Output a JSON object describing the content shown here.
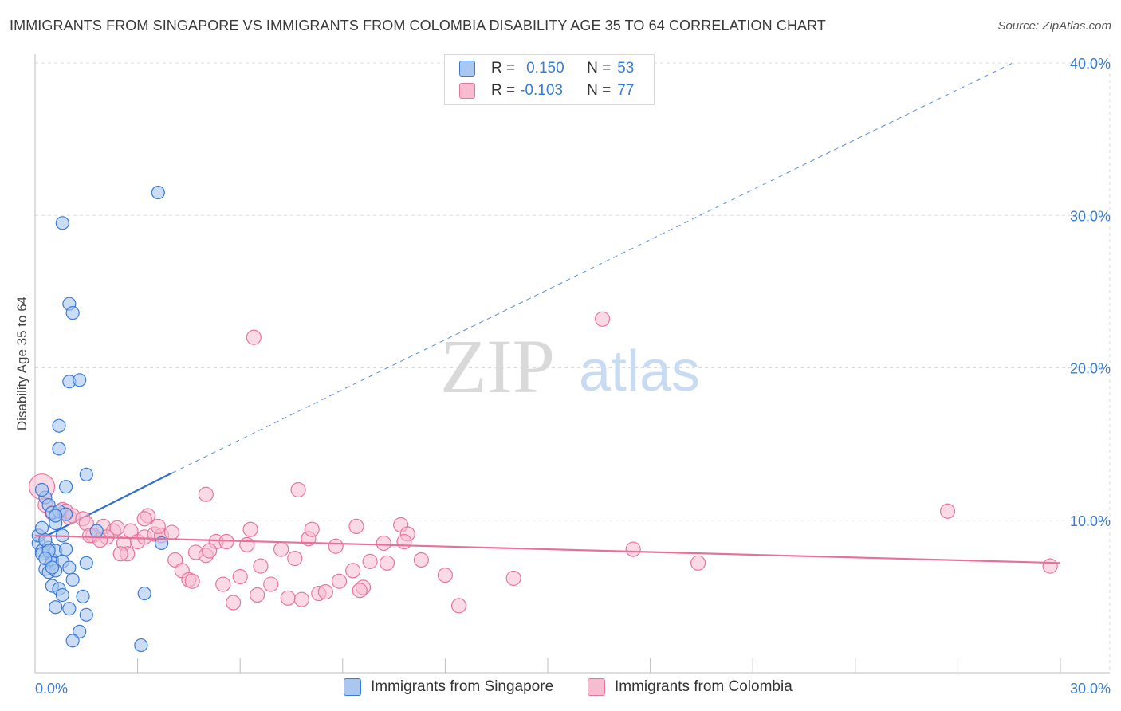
{
  "title": "IMMIGRANTS FROM SINGAPORE VS IMMIGRANTS FROM COLOMBIA DISABILITY AGE 35 TO 64 CORRELATION CHART",
  "source": "Source: ZipAtlas.com",
  "watermark": {
    "zip": "ZIP",
    "atlas": "atlas"
  },
  "legend": {
    "r_label": "R =",
    "n_label": "N =",
    "series": [
      {
        "r": "0.150",
        "n": "53"
      },
      {
        "r": "-0.103",
        "n": "77"
      }
    ]
  },
  "colors": {
    "singapore_fill": "#a9c7f0",
    "singapore_stroke": "#3a7bd5",
    "singapore_line": "#2f6fd0",
    "colombia_fill": "#f7bcd0",
    "colombia_stroke": "#e8769c",
    "colombia_line": "#e8709a",
    "tick_label": "#3a7bd5",
    "grid": "#dddddd"
  },
  "chart_data": {
    "type": "scatter",
    "title": "IMMIGRANTS FROM SINGAPORE VS IMMIGRANTS FROM COLOMBIA DISABILITY AGE 35 TO 64 CORRELATION CHART",
    "xlabel": "",
    "ylabel": "Disability Age 35 to 64",
    "xlim": [
      0,
      30
    ],
    "ylim": [
      0,
      40
    ],
    "x_tick_labels": [
      "0.0%",
      "30.0%"
    ],
    "y_ticks": [
      10,
      20,
      30,
      40
    ],
    "y_tick_labels": [
      "10.0%",
      "20.0%",
      "30.0%",
      "40.0%"
    ],
    "grid": true,
    "series": [
      {
        "name": "Immigrants from Singapore",
        "r": 0.15,
        "n": 53,
        "trend": {
          "x": [
            0,
            4.0
          ],
          "y": [
            8.6,
            13.1
          ],
          "dashed_to": [
            28.6,
            40.0
          ]
        },
        "points": [
          [
            0.1,
            8.5
          ],
          [
            0.2,
            8.0
          ],
          [
            0.3,
            11.5
          ],
          [
            0.1,
            9.0
          ],
          [
            0.2,
            7.8
          ],
          [
            0.4,
            8.2
          ],
          [
            0.3,
            6.8
          ],
          [
            0.5,
            7.4
          ],
          [
            0.6,
            9.8
          ],
          [
            0.4,
            11.0
          ],
          [
            0.5,
            10.5
          ],
          [
            0.7,
            10.6
          ],
          [
            0.6,
            8.0
          ],
          [
            0.8,
            9.0
          ],
          [
            0.9,
            8.1
          ],
          [
            0.5,
            7.2
          ],
          [
            0.8,
            7.3
          ],
          [
            0.4,
            6.6
          ],
          [
            0.6,
            6.7
          ],
          [
            1.0,
            6.9
          ],
          [
            0.5,
            5.7
          ],
          [
            0.7,
            5.5
          ],
          [
            1.1,
            6.1
          ],
          [
            0.8,
            5.1
          ],
          [
            1.4,
            5.0
          ],
          [
            0.6,
            4.3
          ],
          [
            1.0,
            4.2
          ],
          [
            1.5,
            3.8
          ],
          [
            1.3,
            2.7
          ],
          [
            1.1,
            2.1
          ],
          [
            0.7,
            14.7
          ],
          [
            0.7,
            16.2
          ],
          [
            1.0,
            19.1
          ],
          [
            1.3,
            19.2
          ],
          [
            1.0,
            24.2
          ],
          [
            1.1,
            23.6
          ],
          [
            0.8,
            29.5
          ],
          [
            0.9,
            12.2
          ],
          [
            1.5,
            13.0
          ],
          [
            1.8,
            9.3
          ],
          [
            1.5,
            7.2
          ],
          [
            3.6,
            31.5
          ],
          [
            3.2,
            5.2
          ],
          [
            3.1,
            1.8
          ],
          [
            3.7,
            8.5
          ],
          [
            0.2,
            9.5
          ],
          [
            0.3,
            8.7
          ],
          [
            0.9,
            10.4
          ],
          [
            0.2,
            12.0
          ],
          [
            0.4,
            8.0
          ],
          [
            0.6,
            10.3
          ],
          [
            0.3,
            7.5
          ],
          [
            0.5,
            6.9
          ]
        ]
      },
      {
        "name": "Immigrants from Colombia",
        "r": -0.103,
        "n": 77,
        "trend": {
          "x": [
            0,
            30
          ],
          "y": [
            9.0,
            7.2
          ]
        },
        "points": [
          [
            0.2,
            12.2
          ],
          [
            0.3,
            11.0
          ],
          [
            0.5,
            10.5
          ],
          [
            0.8,
            10.7
          ],
          [
            1.0,
            10.2
          ],
          [
            0.9,
            10.6
          ],
          [
            1.1,
            10.3
          ],
          [
            1.4,
            10.1
          ],
          [
            1.5,
            9.8
          ],
          [
            1.7,
            9.0
          ],
          [
            2.0,
            9.6
          ],
          [
            2.3,
            9.3
          ],
          [
            2.1,
            8.9
          ],
          [
            1.9,
            8.7
          ],
          [
            2.6,
            8.5
          ],
          [
            2.8,
            9.3
          ],
          [
            3.0,
            8.6
          ],
          [
            3.2,
            8.9
          ],
          [
            3.5,
            9.1
          ],
          [
            3.7,
            9.0
          ],
          [
            4.0,
            9.2
          ],
          [
            2.7,
            7.8
          ],
          [
            2.5,
            7.8
          ],
          [
            3.3,
            10.3
          ],
          [
            4.1,
            7.4
          ],
          [
            4.3,
            6.7
          ],
          [
            4.5,
            6.1
          ],
          [
            4.7,
            7.9
          ],
          [
            5.0,
            7.7
          ],
          [
            5.3,
            8.6
          ],
          [
            5.5,
            5.8
          ],
          [
            5.6,
            8.6
          ],
          [
            5.8,
            4.6
          ],
          [
            6.0,
            6.3
          ],
          [
            6.2,
            8.4
          ],
          [
            6.3,
            9.4
          ],
          [
            6.5,
            5.1
          ],
          [
            6.6,
            7.0
          ],
          [
            6.9,
            5.8
          ],
          [
            7.2,
            8.1
          ],
          [
            7.4,
            4.9
          ],
          [
            7.6,
            7.5
          ],
          [
            7.8,
            4.8
          ],
          [
            8.0,
            8.8
          ],
          [
            8.1,
            9.4
          ],
          [
            8.3,
            5.2
          ],
          [
            8.5,
            5.3
          ],
          [
            8.8,
            8.3
          ],
          [
            8.9,
            6.0
          ],
          [
            9.3,
            6.7
          ],
          [
            9.4,
            9.6
          ],
          [
            9.6,
            5.6
          ],
          [
            9.8,
            7.3
          ],
          [
            10.2,
            8.5
          ],
          [
            10.3,
            7.2
          ],
          [
            10.7,
            9.7
          ],
          [
            10.9,
            9.1
          ],
          [
            11.3,
            7.4
          ],
          [
            12.0,
            6.4
          ],
          [
            12.4,
            4.4
          ],
          [
            14.0,
            6.2
          ],
          [
            16.6,
            23.2
          ],
          [
            17.5,
            8.1
          ],
          [
            19.4,
            7.2
          ],
          [
            26.7,
            10.6
          ],
          [
            29.7,
            7.0
          ],
          [
            6.4,
            22.0
          ],
          [
            7.7,
            12.0
          ],
          [
            5.0,
            11.7
          ],
          [
            3.2,
            10.1
          ],
          [
            4.6,
            6.0
          ],
          [
            9.5,
            5.4
          ],
          [
            10.8,
            8.6
          ],
          [
            2.4,
            9.5
          ],
          [
            1.6,
            9.0
          ],
          [
            3.6,
            9.6
          ],
          [
            5.1,
            8.0
          ]
        ]
      }
    ]
  },
  "bottom_legend": [
    {
      "label": "Immigrants from Singapore"
    },
    {
      "label": "Immigrants from Colombia"
    }
  ]
}
